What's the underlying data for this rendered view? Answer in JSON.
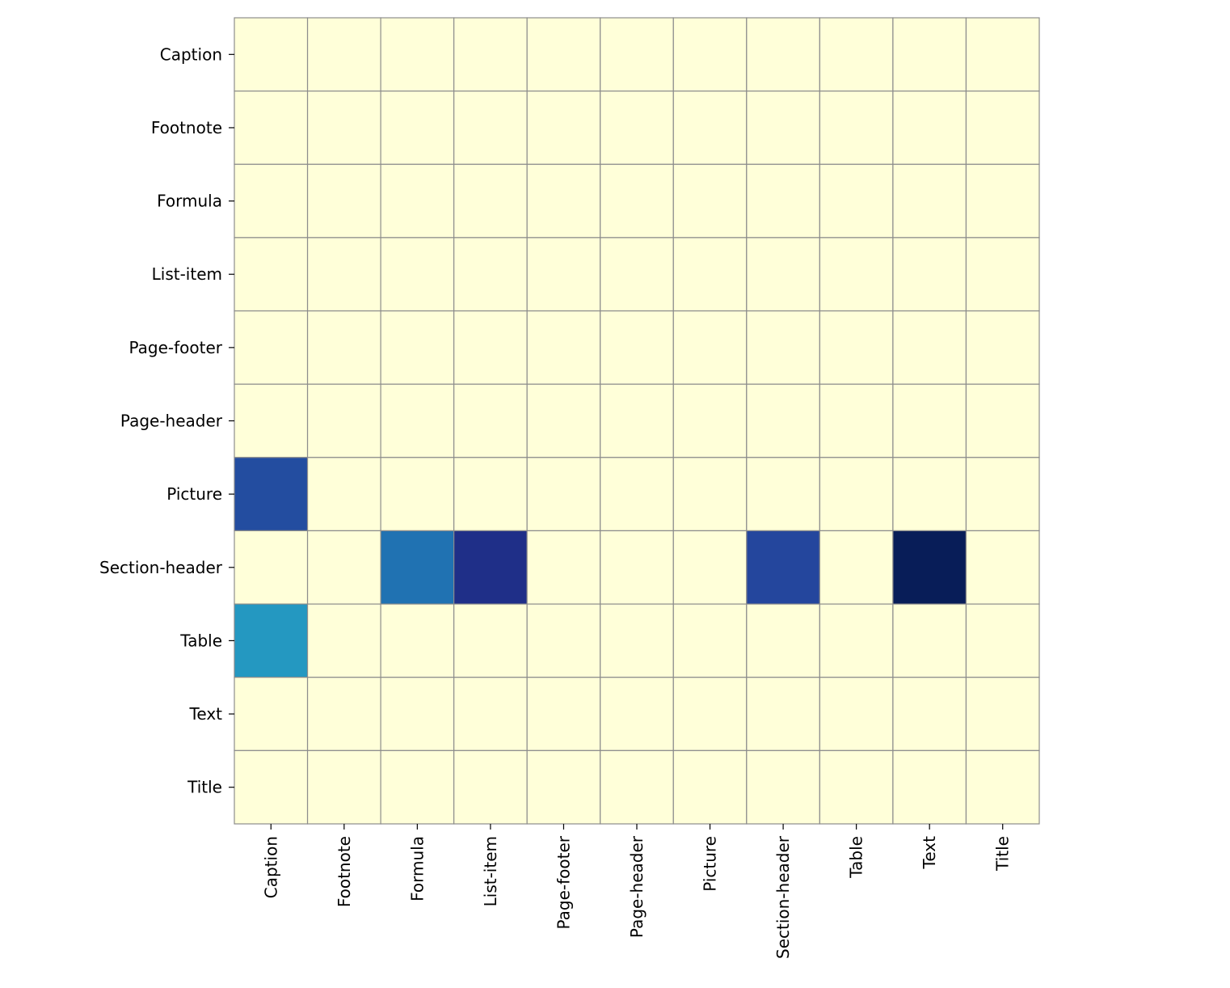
{
  "chart_data": {
    "type": "heatmap",
    "title": "",
    "xlabel": "",
    "ylabel": "",
    "rows": [
      "Caption",
      "Footnote",
      "Formula",
      "List-item",
      "Page-footer",
      "Page-header",
      "Picture",
      "Section-header",
      "Table",
      "Text",
      "Title"
    ],
    "columns": [
      "Caption",
      "Footnote",
      "Formula",
      "List-item",
      "Page-footer",
      "Page-header",
      "Picture",
      "Section-header",
      "Table",
      "Text",
      "Title"
    ],
    "values": [
      [
        0,
        0,
        0,
        0,
        0,
        0,
        0,
        0,
        0,
        0,
        0
      ],
      [
        0,
        0,
        0,
        0,
        0,
        0,
        0,
        0,
        0,
        0,
        0
      ],
      [
        0,
        0,
        0,
        0,
        0,
        0,
        0,
        0,
        0,
        0,
        0
      ],
      [
        0,
        0,
        0,
        0,
        0,
        0,
        0,
        0,
        0,
        0,
        0
      ],
      [
        0,
        0,
        0,
        0,
        0,
        0,
        0,
        0,
        0,
        0,
        0
      ],
      [
        0,
        0,
        0,
        0,
        0,
        0,
        0,
        0,
        0,
        0,
        0
      ],
      [
        0.8,
        0,
        0,
        0,
        0,
        0,
        0,
        0,
        0,
        0,
        0
      ],
      [
        0,
        0,
        0.7,
        0.9,
        0,
        0,
        0,
        0.82,
        0,
        1.0,
        0
      ],
      [
        0.6,
        0,
        0,
        0,
        0,
        0,
        0,
        0,
        0,
        0,
        0
      ],
      [
        0,
        0,
        0,
        0,
        0,
        0,
        0,
        0,
        0,
        0,
        0
      ],
      [
        0,
        0,
        0,
        0,
        0,
        0,
        0,
        0,
        0,
        0,
        0
      ]
    ],
    "value_range": [
      0,
      1
    ],
    "colormap": "YlGnBu",
    "colorbar": false,
    "grid": true,
    "gridline_color": "#8c8c8c",
    "legend": "none"
  }
}
